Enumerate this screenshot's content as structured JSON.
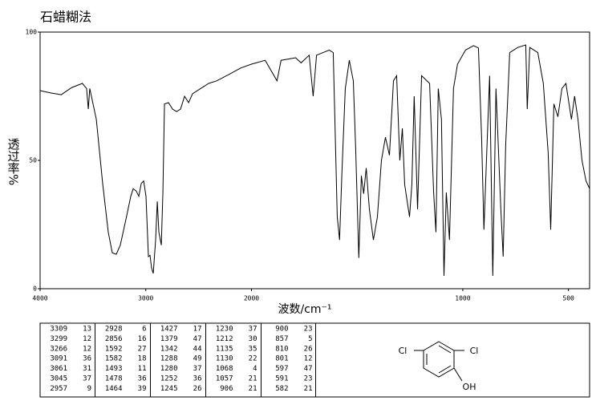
{
  "chart_data": {
    "type": "line",
    "title": "石蜡糊法",
    "xlabel": "波数/cm⁻¹",
    "ylabel": "透过率%",
    "xlim": [
      4000,
      400
    ],
    "ylim": [
      0,
      100
    ],
    "xticks": [
      4000,
      3000,
      2000,
      1000,
      500
    ],
    "yticks": [
      0,
      50,
      100
    ],
    "x_scale_break": 2000,
    "color": "#000000",
    "x": [
      4000,
      3900,
      3800,
      3700,
      3600,
      3560,
      3544,
      3530,
      3468,
      3408,
      3355,
      3317,
      3279,
      3241,
      3188,
      3142,
      3119,
      3089,
      3066,
      3043,
      3020,
      2998,
      2975,
      2960,
      2945,
      2929,
      2907,
      2891,
      2876,
      2853,
      2838,
      2823,
      2785,
      2747,
      2709,
      2671,
      2633,
      2595,
      2557,
      2481,
      2405,
      2329,
      2216,
      2102,
      2000,
      1935,
      1879,
      1860,
      1791,
      1765,
      1727,
      1708,
      1692,
      1632,
      1613,
      1594,
      1583,
      1572,
      1556,
      1537,
      1518,
      1507,
      1492,
      1480,
      1469,
      1457,
      1442,
      1423,
      1404,
      1385,
      1366,
      1347,
      1328,
      1313,
      1298,
      1286,
      1275,
      1263,
      1252,
      1241,
      1230,
      1214,
      1195,
      1157,
      1138,
      1127,
      1116,
      1101,
      1089,
      1078,
      1063,
      1044,
      1025,
      987,
      949,
      926,
      911,
      900,
      888,
      873,
      858,
      843,
      820,
      809,
      797,
      778,
      740,
      702,
      695,
      683,
      645,
      619,
      596,
      584,
      569,
      550,
      531,
      512,
      486,
      471,
      455,
      436,
      417,
      400
    ],
    "values": [
      77.2,
      76.3,
      75.6,
      78.4,
      80,
      78,
      70,
      78,
      66,
      41,
      22,
      14,
      13.4,
      17,
      27,
      36,
      39,
      38,
      36,
      41,
      42,
      36,
      12.5,
      13,
      8,
      6,
      19,
      34,
      22,
      17,
      37.5,
      72,
      72.5,
      70,
      69,
      70,
      75,
      72.5,
      76,
      78,
      80,
      81,
      83.4,
      86,
      87.5,
      89,
      81,
      89,
      90,
      88,
      91,
      75,
      91,
      93,
      92,
      28,
      19,
      45,
      78,
      89,
      81,
      55,
      12,
      44,
      37,
      47,
      31,
      19,
      28,
      50,
      59,
      52,
      81,
      83,
      50,
      62.5,
      40.6,
      34,
      28,
      40.6,
      75,
      31,
      83,
      80,
      37.5,
      22,
      78,
      66,
      5,
      37.5,
      19,
      78,
      87.5,
      93,
      94.7,
      93.8,
      59,
      23,
      50,
      83,
      5,
      78,
      31,
      12.5,
      56,
      92,
      94,
      95,
      70,
      94,
      92,
      80,
      53,
      23,
      72,
      67,
      78,
      80,
      66,
      75,
      66,
      50,
      42,
      39
    ]
  },
  "peak_table": {
    "columns": [
      [
        [
          3309,
          13
        ],
        [
          3299,
          12
        ],
        [
          3266,
          12
        ],
        [
          3091,
          36
        ],
        [
          3061,
          31
        ],
        [
          3045,
          37
        ],
        [
          2957,
          9
        ]
      ],
      [
        [
          2928,
          6
        ],
        [
          2856,
          16
        ],
        [
          1592,
          27
        ],
        [
          1582,
          18
        ],
        [
          1493,
          11
        ],
        [
          1478,
          36
        ],
        [
          1464,
          39
        ]
      ],
      [
        [
          1427,
          17
        ],
        [
          1379,
          47
        ],
        [
          1342,
          44
        ],
        [
          1288,
          49
        ],
        [
          1280,
          37
        ],
        [
          1252,
          36
        ],
        [
          1245,
          26
        ]
      ],
      [
        [
          1230,
          37
        ],
        [
          1212,
          30
        ],
        [
          1135,
          35
        ],
        [
          1130,
          22
        ],
        [
          1068,
          4
        ],
        [
          1057,
          21
        ],
        [
          906,
          21
        ]
      ],
      [
        [
          900,
          23
        ],
        [
          857,
          5
        ],
        [
          810,
          26
        ],
        [
          801,
          12
        ],
        [
          597,
          47
        ],
        [
          591,
          23
        ],
        [
          582,
          21
        ]
      ]
    ]
  },
  "structure": {
    "labels": [
      "Cl",
      "Cl",
      "OH"
    ]
  }
}
